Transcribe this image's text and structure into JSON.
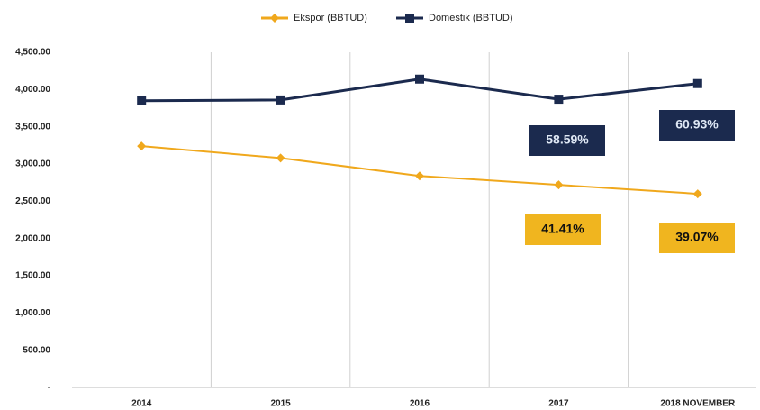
{
  "chart_data": {
    "type": "line",
    "categories": [
      "2014",
      "2015",
      "2016",
      "2017",
      "2018  NOVEMBER"
    ],
    "series": [
      {
        "name": "Ekspor (BBTUD)",
        "color": "#f0a81c",
        "marker": "diamond",
        "values": [
          3240,
          3080,
          2840,
          2720,
          2600
        ]
      },
      {
        "name": "Domestik (BBTUD)",
        "color": "#1b2a4e",
        "marker": "square",
        "values": [
          3850,
          3860,
          4140,
          3870,
          4080
        ]
      }
    ],
    "ylim": [
      0,
      4500
    ],
    "yticks": [
      {
        "value": 0,
        "label": "-"
      },
      {
        "value": 500,
        "label": "500.00"
      },
      {
        "value": 1000,
        "label": "1,000.00"
      },
      {
        "value": 1500,
        "label": "1,500.00"
      },
      {
        "value": 2000,
        "label": "2,000.00"
      },
      {
        "value": 2500,
        "label": "2,500.00"
      },
      {
        "value": 3000,
        "label": "3,000.00"
      },
      {
        "value": 3500,
        "label": "3,500.00"
      },
      {
        "value": 4000,
        "label": "4,000.00"
      },
      {
        "value": 4500,
        "label": "4,500.00"
      }
    ],
    "annotations": [
      {
        "text": "58.59%",
        "color": "#1b2a4e"
      },
      {
        "text": "60.93%",
        "color": "#1b2a4e"
      },
      {
        "text": "41.41%",
        "color": "#f0b51f"
      },
      {
        "text": "39.07%",
        "color": "#f0b51f"
      }
    ],
    "grid": true,
    "legend": "top"
  }
}
